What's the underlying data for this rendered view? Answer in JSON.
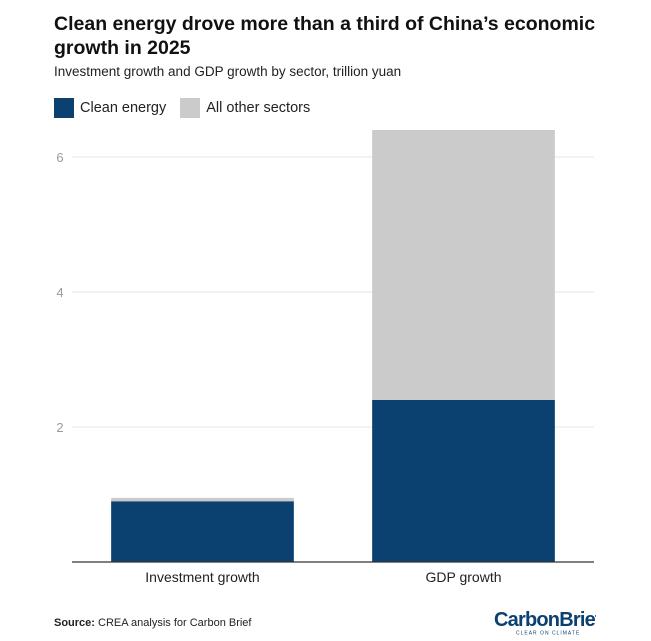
{
  "title": "Clean energy drove more than a third of China’s economic growth in 2025",
  "subtitle": "Investment growth and GDP growth by sector, trillion yuan",
  "legend": [
    {
      "label": "Clean energy",
      "color": "#0b4170"
    },
    {
      "label": "All other sectors",
      "color": "#cccbcc"
    }
  ],
  "source": {
    "label": "Source:",
    "text": "CREA analysis for Carbon Brief"
  },
  "logo": {
    "text": "CarbonBrief",
    "tagline": "CLEAR ON CLIMATE"
  },
  "chart_data": {
    "type": "bar",
    "stacked": true,
    "categories": [
      "Investment growth",
      "GDP growth"
    ],
    "series": [
      {
        "name": "Clean energy",
        "values": [
          0.9,
          2.4
        ],
        "color": "#0b4170"
      },
      {
        "name": "All other sectors",
        "values": [
          0.05,
          4.0
        ],
        "color": "#cccbcc"
      }
    ],
    "yticks": [
      2,
      4,
      6
    ],
    "ylim": [
      0,
      6.4
    ],
    "grid": true,
    "legend_position": "top-left"
  }
}
